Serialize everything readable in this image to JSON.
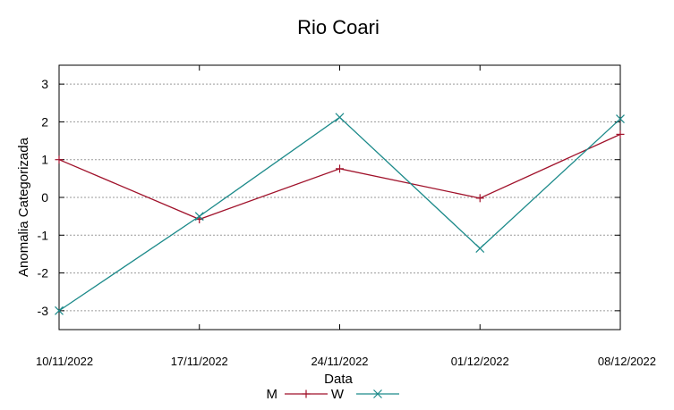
{
  "chart_data": {
    "type": "line",
    "title": "Rio Coari",
    "xlabel": "Data",
    "ylabel": "Anomalia Categorizada",
    "categories": [
      "10/11/2022",
      "17/11/2022",
      "24/11/2022",
      "01/12/2022",
      "08/12/2022"
    ],
    "ylim": [
      -3.5,
      3.5
    ],
    "yticks": [
      -3,
      -2,
      -1,
      0,
      1,
      2,
      3
    ],
    "grid": true,
    "legend_position": "bottom",
    "series": [
      {
        "name": "M",
        "values": [
          1.0,
          -0.58,
          0.76,
          -0.02,
          1.67
        ],
        "color": "#a0112a",
        "marker": "plus"
      },
      {
        "name": "W",
        "values": [
          -3.0,
          -0.5,
          2.12,
          -1.35,
          2.08
        ],
        "color": "#1c8a8a",
        "marker": "cross"
      }
    ]
  }
}
